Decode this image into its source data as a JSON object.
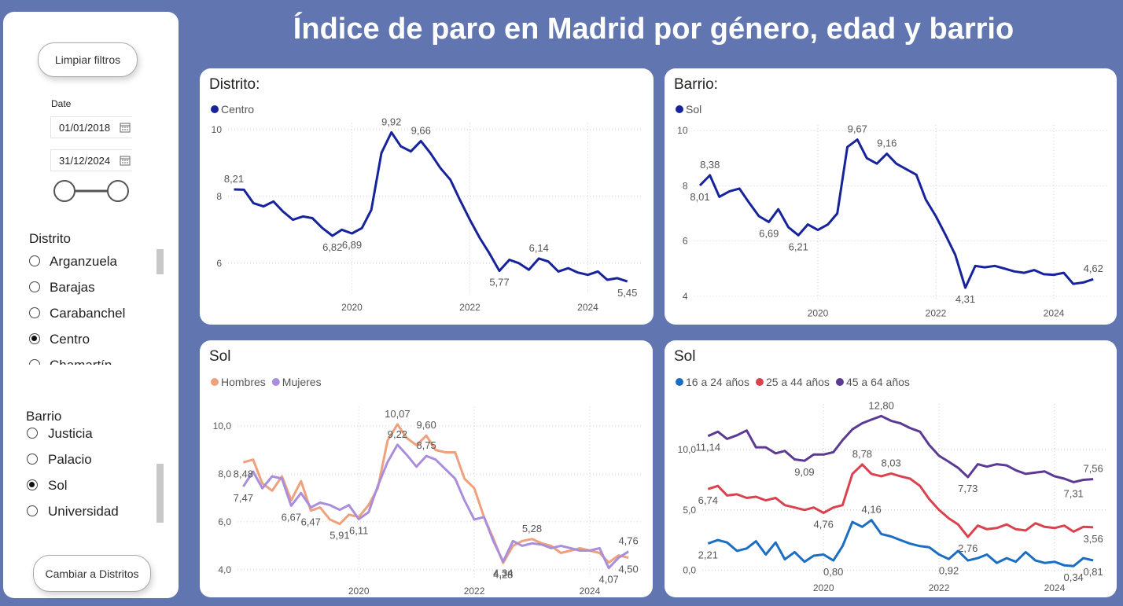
{
  "title": "Índice de paro en Madrid por género, edad y barrio",
  "sidebar": {
    "clear_button": "Limpiar filtros",
    "date_label": "Date",
    "date_start": "01/01/2018",
    "date_end": "31/12/2024",
    "distrito": {
      "title": "Distrito",
      "options": [
        "Arganzuela",
        "Barajas",
        "Carabanchel",
        "Centro",
        "Chamartín"
      ],
      "selected": 3
    },
    "barrio": {
      "title": "Barrio",
      "options": [
        "Justicia",
        "Palacio",
        "Sol",
        "Universidad"
      ],
      "selected": 2
    },
    "switch_button": "Cambiar a Distritos"
  },
  "chart_data": [
    {
      "type": "line",
      "title": "Distrito:",
      "x": [
        2018,
        2018.17,
        2018.33,
        2018.5,
        2018.67,
        2018.83,
        2019,
        2019.17,
        2019.33,
        2019.5,
        2019.67,
        2019.83,
        2020,
        2020.17,
        2020.33,
        2020.5,
        2020.67,
        2020.83,
        2021,
        2021.17,
        2021.33,
        2021.5,
        2021.67,
        2021.83,
        2022,
        2022.17,
        2022.33,
        2022.5,
        2022.67,
        2022.83,
        2023,
        2023.17,
        2023.33,
        2023.5,
        2023.67,
        2023.83,
        2024,
        2024.17,
        2024.33,
        2024.5,
        2024.67
      ],
      "xlim": [
        2017.9,
        2024.9
      ],
      "xticks": [
        2020,
        2022,
        2024
      ],
      "ylim": [
        5.1,
        10.2
      ],
      "yticks": [
        6,
        8,
        10
      ],
      "grid": true,
      "series": [
        {
          "name": "Centro",
          "color": "#16239a",
          "values": [
            8.21,
            8.2,
            7.8,
            7.7,
            7.85,
            7.55,
            7.3,
            7.4,
            7.35,
            7.05,
            6.82,
            7.0,
            6.89,
            7.05,
            7.6,
            9.3,
            9.92,
            9.5,
            9.35,
            9.66,
            9.3,
            8.85,
            8.5,
            7.9,
            7.3,
            6.75,
            6.3,
            5.77,
            6.1,
            6.0,
            5.8,
            6.14,
            6.05,
            5.75,
            5.85,
            5.72,
            5.65,
            5.75,
            5.5,
            5.55,
            5.45
          ],
          "value_labels": [
            "8,21",
            null,
            null,
            null,
            null,
            null,
            null,
            null,
            null,
            null,
            "6,82",
            null,
            "6,89",
            null,
            null,
            null,
            "9,92",
            null,
            null,
            "9,66",
            null,
            null,
            null,
            null,
            null,
            null,
            null,
            "5,77",
            null,
            null,
            null,
            "6,14",
            null,
            null,
            null,
            null,
            null,
            null,
            null,
            null,
            "5,45"
          ]
        }
      ]
    },
    {
      "type": "line",
      "title": "Barrio:",
      "x": [
        2018,
        2018.17,
        2018.33,
        2018.5,
        2018.67,
        2018.83,
        2019,
        2019.17,
        2019.33,
        2019.5,
        2019.67,
        2019.83,
        2020,
        2020.17,
        2020.33,
        2020.5,
        2020.67,
        2020.83,
        2021,
        2021.17,
        2021.33,
        2021.5,
        2021.67,
        2021.83,
        2022,
        2022.17,
        2022.33,
        2022.5,
        2022.67,
        2022.83,
        2023,
        2023.17,
        2023.33,
        2023.5,
        2023.67,
        2023.83,
        2024,
        2024.17,
        2024.33,
        2024.5,
        2024.67
      ],
      "xlim": [
        2017.9,
        2024.9
      ],
      "xticks": [
        2020,
        2022,
        2024
      ],
      "ylim": [
        3.9,
        10.2
      ],
      "yticks": [
        4,
        6,
        8,
        10
      ],
      "grid": true,
      "series": [
        {
          "name": "Sol",
          "color": "#16239a",
          "values": [
            8.01,
            8.38,
            7.6,
            7.8,
            7.9,
            7.4,
            6.9,
            6.69,
            7.15,
            6.5,
            6.21,
            6.6,
            6.4,
            6.6,
            7.0,
            9.4,
            9.67,
            9.0,
            8.8,
            9.16,
            8.8,
            8.6,
            8.4,
            7.5,
            6.9,
            6.2,
            5.5,
            4.31,
            5.1,
            5.05,
            5.1,
            5.0,
            4.9,
            4.85,
            4.95,
            4.8,
            4.78,
            4.85,
            4.45,
            4.5,
            4.62
          ],
          "value_labels": [
            "8,01",
            "8,38",
            null,
            null,
            null,
            null,
            null,
            "6,69",
            null,
            null,
            "6,21",
            null,
            null,
            null,
            null,
            null,
            "9,67",
            null,
            null,
            "9,16",
            null,
            null,
            null,
            null,
            null,
            null,
            null,
            "4,31",
            null,
            null,
            null,
            null,
            null,
            null,
            null,
            null,
            null,
            null,
            null,
            null,
            "4,62"
          ]
        }
      ]
    },
    {
      "type": "line",
      "title": "Sol",
      "x": [
        2018,
        2018.17,
        2018.33,
        2018.5,
        2018.67,
        2018.83,
        2019,
        2019.17,
        2019.33,
        2019.5,
        2019.67,
        2019.83,
        2020,
        2020.17,
        2020.33,
        2020.5,
        2020.67,
        2020.83,
        2021,
        2021.17,
        2021.33,
        2021.5,
        2021.67,
        2021.83,
        2022,
        2022.17,
        2022.33,
        2022.5,
        2022.67,
        2022.83,
        2023,
        2023.17,
        2023.33,
        2023.5,
        2023.67,
        2023.83,
        2024,
        2024.17,
        2024.33,
        2024.5,
        2024.67
      ],
      "xlim": [
        2017.9,
        2024.9
      ],
      "xticks": [
        2020,
        2022,
        2024
      ],
      "ylim": [
        3.7,
        10.8
      ],
      "yticks": [
        {
          "value": 4,
          "label": "4,0"
        },
        {
          "value": 6,
          "label": "6,0"
        },
        {
          "value": 8,
          "label": "8,0"
        },
        {
          "value": 10,
          "label": "10,0"
        }
      ],
      "grid": true,
      "series": [
        {
          "name": "Hombres",
          "color": "#efa07c",
          "values": [
            8.48,
            8.6,
            7.6,
            7.3,
            7.9,
            6.9,
            7.7,
            6.47,
            6.6,
            6.1,
            5.91,
            6.3,
            6.2,
            6.7,
            7.4,
            9.4,
            10.07,
            9.5,
            9.2,
            9.6,
            9.0,
            8.9,
            8.9,
            7.8,
            7.4,
            6.2,
            5.3,
            4.28,
            5.0,
            5.2,
            5.28,
            5.1,
            5.0,
            4.7,
            4.8,
            4.9,
            4.8,
            4.7,
            4.3,
            4.6,
            4.5
          ],
          "value_labels": [
            "8,48",
            null,
            null,
            null,
            null,
            null,
            null,
            "6,47",
            null,
            null,
            "5,91",
            null,
            null,
            null,
            null,
            null,
            "10,07",
            null,
            null,
            "9,60",
            null,
            null,
            null,
            null,
            null,
            null,
            null,
            "4,28",
            null,
            null,
            "5,28",
            null,
            null,
            null,
            null,
            null,
            null,
            null,
            null,
            null,
            "4,50"
          ]
        },
        {
          "name": "Mujeres",
          "color": "#a98fdb",
          "values": [
            7.47,
            8.1,
            7.4,
            7.9,
            7.8,
            6.67,
            7.2,
            6.6,
            6.8,
            6.7,
            6.5,
            6.7,
            6.11,
            6.4,
            7.5,
            8.5,
            9.22,
            8.8,
            8.3,
            8.75,
            8.6,
            8.2,
            7.8,
            6.9,
            6.1,
            6.2,
            5.2,
            4.34,
            5.2,
            5.0,
            5.1,
            5.05,
            4.9,
            5.0,
            4.9,
            4.8,
            4.8,
            4.9,
            4.07,
            4.5,
            4.76
          ],
          "value_labels": [
            "7,47",
            null,
            null,
            null,
            null,
            "6,67",
            null,
            null,
            null,
            null,
            null,
            null,
            "6,11",
            null,
            null,
            null,
            "9,22",
            null,
            null,
            "8,75",
            null,
            null,
            null,
            null,
            null,
            null,
            null,
            "4,34",
            null,
            null,
            null,
            null,
            null,
            null,
            null,
            null,
            null,
            null,
            "4,07",
            null,
            "4,76"
          ]
        }
      ]
    },
    {
      "type": "line",
      "title": "Sol",
      "x": [
        2018,
        2018.17,
        2018.33,
        2018.5,
        2018.67,
        2018.83,
        2019,
        2019.17,
        2019.33,
        2019.5,
        2019.67,
        2019.83,
        2020,
        2020.17,
        2020.33,
        2020.5,
        2020.67,
        2020.83,
        2021,
        2021.17,
        2021.33,
        2021.5,
        2021.67,
        2021.83,
        2022,
        2022.17,
        2022.33,
        2022.5,
        2022.67,
        2022.83,
        2023,
        2023.17,
        2023.33,
        2023.5,
        2023.67,
        2023.83,
        2024,
        2024.17,
        2024.33,
        2024.5,
        2024.67
      ],
      "xlim": [
        2017.9,
        2024.9
      ],
      "xticks": [
        2020,
        2022,
        2024
      ],
      "ylim": [
        -0.3,
        13.8
      ],
      "yticks": [
        {
          "value": 0,
          "label": "0,0"
        },
        {
          "value": 5,
          "label": "5,0"
        },
        {
          "value": 10,
          "label": "10,0"
        }
      ],
      "grid": true,
      "series": [
        {
          "name": "16 a 24 años",
          "color": "#1b6ec2",
          "values": [
            2.21,
            2.5,
            2.3,
            1.6,
            1.8,
            2.4,
            1.3,
            2.3,
            0.9,
            1.5,
            0.7,
            1.2,
            1.3,
            0.8,
            2.0,
            4.0,
            3.6,
            4.16,
            3.0,
            2.8,
            2.5,
            2.2,
            2.0,
            1.9,
            1.3,
            0.92,
            1.6,
            0.8,
            1.0,
            1.3,
            0.6,
            1.0,
            0.7,
            1.5,
            0.8,
            0.6,
            0.7,
            0.4,
            0.34,
            1.0,
            0.81
          ],
          "value_labels": [
            "2,21",
            null,
            null,
            null,
            null,
            null,
            null,
            null,
            null,
            null,
            null,
            null,
            null,
            "0,80",
            null,
            null,
            null,
            "4,16",
            null,
            null,
            null,
            null,
            null,
            null,
            null,
            "0,92",
            null,
            null,
            null,
            null,
            null,
            null,
            null,
            null,
            null,
            null,
            null,
            null,
            "0,34",
            null,
            "0,81"
          ]
        },
        {
          "name": "25 a 44 años",
          "color": "#d8434f",
          "values": [
            6.74,
            7.0,
            6.2,
            6.3,
            6.0,
            6.1,
            5.8,
            6.0,
            5.4,
            5.2,
            5.0,
            5.2,
            4.76,
            5.2,
            5.4,
            8.0,
            8.78,
            8.0,
            7.8,
            8.03,
            7.8,
            7.6,
            7.0,
            5.9,
            5.0,
            4.3,
            3.8,
            2.76,
            3.7,
            3.4,
            3.5,
            3.8,
            3.4,
            3.3,
            3.9,
            3.6,
            3.5,
            3.7,
            3.2,
            3.6,
            3.56
          ],
          "value_labels": [
            "6,74",
            null,
            null,
            null,
            null,
            null,
            null,
            null,
            null,
            null,
            null,
            null,
            "4,76",
            null,
            null,
            null,
            "8,78",
            null,
            null,
            "8,03",
            null,
            null,
            null,
            null,
            null,
            null,
            null,
            "2,76",
            null,
            null,
            null,
            null,
            null,
            null,
            null,
            null,
            null,
            null,
            null,
            null,
            "3,56"
          ]
        },
        {
          "name": "45 a 64 años",
          "color": "#5b3a93",
          "values": [
            11.14,
            11.5,
            10.9,
            11.2,
            11.6,
            10.2,
            10.2,
            9.7,
            9.9,
            9.2,
            9.09,
            9.6,
            9.6,
            9.8,
            10.8,
            11.7,
            12.2,
            12.5,
            12.8,
            12.4,
            12.2,
            11.8,
            11.5,
            10.4,
            9.5,
            9.0,
            8.5,
            7.73,
            8.8,
            8.6,
            8.8,
            8.7,
            8.3,
            8.0,
            8.1,
            8.2,
            7.8,
            7.6,
            7.31,
            7.5,
            7.56
          ],
          "value_labels": [
            "11,14",
            null,
            null,
            null,
            null,
            null,
            null,
            null,
            null,
            null,
            "9,09",
            null,
            null,
            null,
            null,
            null,
            null,
            null,
            "12,80",
            null,
            null,
            null,
            null,
            null,
            null,
            null,
            null,
            "7,73",
            null,
            null,
            null,
            null,
            null,
            null,
            null,
            null,
            null,
            null,
            "7,31",
            null,
            "7,56"
          ]
        }
      ]
    }
  ]
}
